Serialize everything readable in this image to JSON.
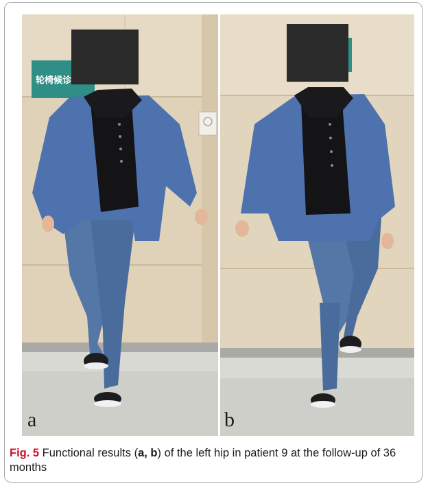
{
  "figure": {
    "panels": [
      {
        "label": "a",
        "sign_text": "轮椅候诊室"
      },
      {
        "label": "b"
      }
    ],
    "caption": {
      "fig_label": "Fig. 5",
      "text_before": " Functional results (",
      "panel_refs": "a, b",
      "text_after": ") of the left hip in patient 9 at the follow-up of 36 months"
    }
  }
}
